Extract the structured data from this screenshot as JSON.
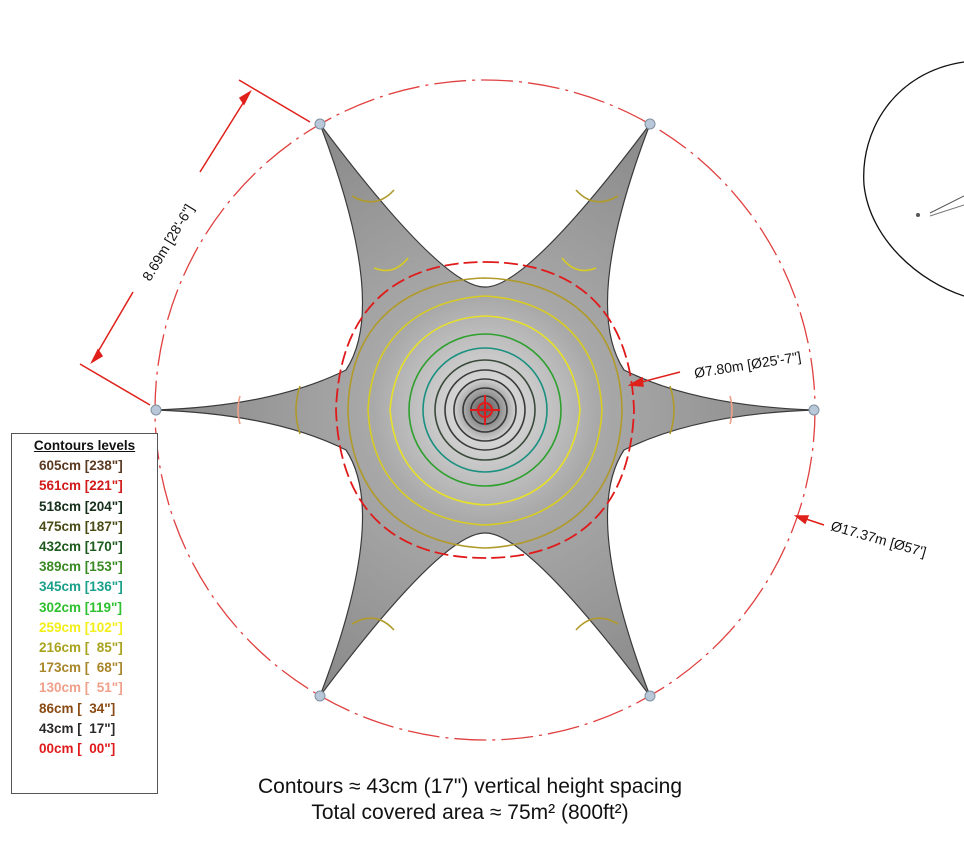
{
  "dimensions": {
    "side_length": "8.69m [28'-6\"]",
    "inner_diameter": "Ø7.80m [Ø25'-7\"]",
    "outer_diameter": "Ø17.37m [Ø57']"
  },
  "legend": {
    "title": "Contours levels",
    "items": [
      {
        "label": "605cm [238\"]",
        "color": "#5a3a22"
      },
      {
        "label": "561cm [221\"]",
        "color": "#d11a1a"
      },
      {
        "label": "518cm [204\"]",
        "color": "#16301c"
      },
      {
        "label": "475cm [187\"]",
        "color": "#4a4a16"
      },
      {
        "label": "432cm [170\"]",
        "color": "#1d5a1d"
      },
      {
        "label": "389cm [153\"]",
        "color": "#3a8a24"
      },
      {
        "label": "345cm [136\"]",
        "color": "#1aa08a"
      },
      {
        "label": "302cm [119\"]",
        "color": "#2ec02e"
      },
      {
        "label": "259cm [102\"]",
        "color": "#f2ee1a"
      },
      {
        "label": "216cm [  85\"]",
        "color": "#a8a21c"
      },
      {
        "label": "173cm [  68\"]",
        "color": "#a8862a"
      },
      {
        "label": "130cm [  51\"]",
        "color": "#f0a08a"
      },
      {
        "label": "86cm [  34\"]",
        "color": "#8a4a12"
      },
      {
        "label": "43cm [  17\"]",
        "color": "#2a2a2a"
      },
      {
        "label": "00cm [  00\"]",
        "color": "#e01a1a"
      }
    ]
  },
  "caption": {
    "line1": "Contours ≈ 43cm (17\") vertical height spacing",
    "line2": "Total covered area ≈ 75m² (800ft²)"
  },
  "colors": {
    "dimension_line": "#e0201a",
    "outer_circle": "#e04040",
    "membrane": "#8e8e8e"
  }
}
